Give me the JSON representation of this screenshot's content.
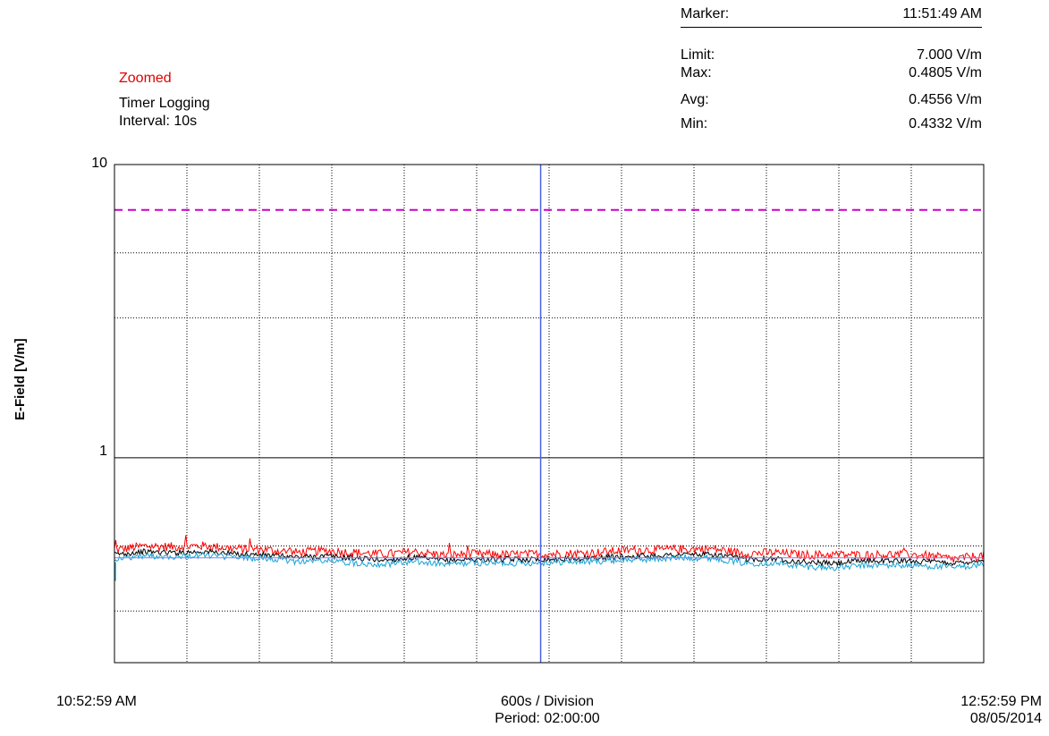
{
  "status": {
    "zoomed": "Zoomed",
    "mode": "Timer Logging",
    "interval": "Interval: 10s"
  },
  "stats": {
    "marker_label": "Marker:",
    "marker_value": "11:51:49 AM",
    "limit_label": "Limit:",
    "limit_value": "7.000 V/m",
    "max_label": "Max:",
    "max_value": "0.4805 V/m",
    "avg_label": "Avg:",
    "avg_value": "0.4556 V/m",
    "min_label": "Min:",
    "min_value": "0.4332 V/m"
  },
  "axis": {
    "ylabel": "E-Field [V/m]",
    "ytick_10": "10",
    "ytick_1": "1",
    "x_start": "10:52:59 AM",
    "x_division": "600s / Division",
    "x_period": "Period: 02:00:00",
    "x_end": "12:52:59 PM",
    "x_date": "08/05/2014"
  },
  "colors": {
    "max": "#ff0000",
    "avg": "#000000",
    "min": "#1aa3d6",
    "limit": "#cc00cc",
    "marker": "#4a5ee8",
    "avg_line": "#8080ff"
  },
  "chart_data": {
    "type": "line",
    "ylabel": "E-Field [V/m]",
    "y_scale": "log",
    "ylim": [
      0.2,
      10
    ],
    "yticks": [
      1,
      10
    ],
    "x_range": [
      "10:52:59 AM",
      "12:52:59 PM"
    ],
    "x_division_seconds": 600,
    "divisions": 12,
    "limit": 7.0,
    "marker_time": "11:51:49 AM",
    "avg_reference": 0.4556,
    "grid": true,
    "series": [
      {
        "values": [
          0.484,
          0.5,
          0.497,
          0.501,
          0.49,
          0.487,
          0.475,
          0.482,
          0.475,
          0.469,
          0.478,
          0.465,
          0.47,
          0.467,
          0.469,
          0.471,
          0.474,
          0.484,
          0.485,
          0.488,
          0.489,
          0.471,
          0.475,
          0.466,
          0.467,
          0.466,
          0.468,
          0.465,
          0.451,
          0.465
        ]
      },
      {
        "values": [
          0.468,
          0.478,
          0.475,
          0.479,
          0.47,
          0.466,
          0.458,
          0.462,
          0.455,
          0.448,
          0.457,
          0.446,
          0.451,
          0.45,
          0.451,
          0.451,
          0.455,
          0.461,
          0.463,
          0.468,
          0.467,
          0.452,
          0.453,
          0.441,
          0.436,
          0.446,
          0.445,
          0.443,
          0.437,
          0.447
        ]
      },
      {
        "values": [
          0.452,
          0.462,
          0.461,
          0.466,
          0.456,
          0.454,
          0.443,
          0.446,
          0.438,
          0.433,
          0.442,
          0.433,
          0.438,
          0.437,
          0.438,
          0.441,
          0.443,
          0.449,
          0.451,
          0.456,
          0.455,
          0.437,
          0.438,
          0.426,
          0.421,
          0.429,
          0.43,
          0.428,
          0.422,
          0.433
        ]
      }
    ]
  }
}
